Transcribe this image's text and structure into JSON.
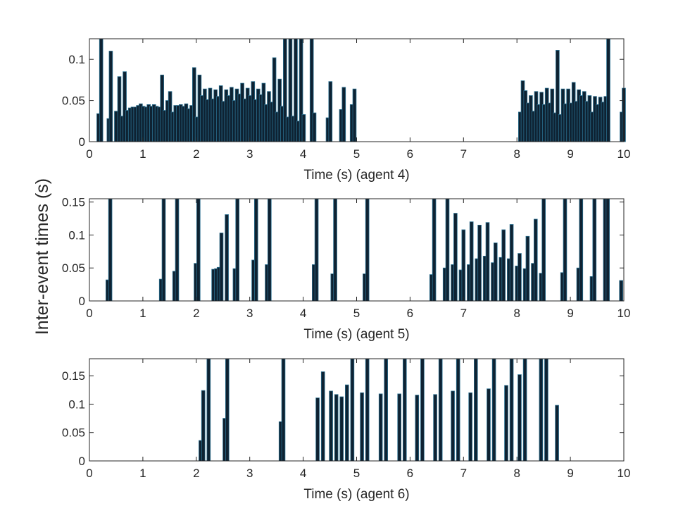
{
  "ylabel": "Inter-event times (s)",
  "colors": {
    "bar": "#0e2232",
    "bar_edge": "#2a6f8f",
    "axis": "#262626"
  },
  "chart_data": [
    {
      "type": "bar",
      "xlabel": "Time (s) (agent 4)",
      "xlim": [
        0,
        10
      ],
      "ylim": [
        0,
        0.125
      ],
      "xticks": [
        0,
        1,
        2,
        3,
        4,
        5,
        6,
        7,
        8,
        9,
        10
      ],
      "yticks": [
        0,
        0.05,
        0.1
      ],
      "ytick_labels": [
        "0",
        "0.05",
        "0.1"
      ],
      "x": [
        0.17,
        0.22,
        0.36,
        0.4,
        0.5,
        0.56,
        0.61,
        0.66,
        0.71,
        0.76,
        0.81,
        0.86,
        0.91,
        0.96,
        1.01,
        1.06,
        1.11,
        1.16,
        1.21,
        1.26,
        1.31,
        1.36,
        1.41,
        1.46,
        1.51,
        1.56,
        1.61,
        1.66,
        1.71,
        1.76,
        1.81,
        1.86,
        1.91,
        1.96,
        2.01,
        2.06,
        2.11,
        2.16,
        2.21,
        2.26,
        2.31,
        2.36,
        2.41,
        2.46,
        2.51,
        2.56,
        2.61,
        2.66,
        2.71,
        2.76,
        2.81,
        2.86,
        2.91,
        2.96,
        3.01,
        3.06,
        3.11,
        3.16,
        3.21,
        3.26,
        3.31,
        3.36,
        3.41,
        3.46,
        3.51,
        3.56,
        3.61,
        3.66,
        3.71,
        3.76,
        3.81,
        3.86,
        3.91,
        3.96,
        4.01,
        4.16,
        4.21,
        4.46,
        4.51,
        4.71,
        4.76,
        4.91,
        4.96,
        8.06,
        8.11,
        8.16,
        8.21,
        8.26,
        8.31,
        8.36,
        8.41,
        8.46,
        8.51,
        8.56,
        8.61,
        8.66,
        8.71,
        8.76,
        8.81,
        8.86,
        8.91,
        8.96,
        9.01,
        9.06,
        9.11,
        9.16,
        9.21,
        9.26,
        9.31,
        9.36,
        9.41,
        9.46,
        9.51,
        9.56,
        9.61,
        9.66,
        9.71,
        9.96,
        10.0
      ],
      "values": [
        0.034,
        0.125,
        0.028,
        0.11,
        0.037,
        0.079,
        0.031,
        0.085,
        0.038,
        0.041,
        0.042,
        0.042,
        0.044,
        0.046,
        0.043,
        0.042,
        0.045,
        0.043,
        0.045,
        0.043,
        0.042,
        0.081,
        0.038,
        0.05,
        0.061,
        0.036,
        0.044,
        0.044,
        0.045,
        0.043,
        0.046,
        0.04,
        0.044,
        0.09,
        0.03,
        0.081,
        0.056,
        0.064,
        0.051,
        0.065,
        0.052,
        0.063,
        0.055,
        0.068,
        0.049,
        0.063,
        0.056,
        0.066,
        0.05,
        0.064,
        0.058,
        0.071,
        0.052,
        0.065,
        0.056,
        0.073,
        0.051,
        0.064,
        0.057,
        0.071,
        0.045,
        0.061,
        0.048,
        0.102,
        0.036,
        0.076,
        0.043,
        0.125,
        0.03,
        0.125,
        0.031,
        0.125,
        0.025,
        0.125,
        0.033,
        0.125,
        0.035,
        0.029,
        0.073,
        0.039,
        0.066,
        0.045,
        0.064,
        0.036,
        0.074,
        0.062,
        0.047,
        0.056,
        0.037,
        0.061,
        0.045,
        0.06,
        0.045,
        0.065,
        0.047,
        0.064,
        0.035,
        0.111,
        0.033,
        0.064,
        0.046,
        0.064,
        0.047,
        0.072,
        0.049,
        0.063,
        0.056,
        0.061,
        0.049,
        0.056,
        0.036,
        0.055,
        0.045,
        0.054,
        0.048,
        0.055,
        0.125,
        0.036,
        0.065
      ]
    },
    {
      "type": "bar",
      "xlabel": "Time (s) (agent 5)",
      "xlim": [
        0,
        10
      ],
      "ylim": [
        0,
        0.155
      ],
      "xticks": [
        0,
        1,
        2,
        3,
        4,
        5,
        6,
        7,
        8,
        9,
        10
      ],
      "yticks": [
        0,
        0.05,
        0.1,
        0.15
      ],
      "ytick_labels": [
        "0",
        "0.05",
        "0.1",
        "0.15"
      ],
      "x": [
        0.34,
        0.39,
        1.34,
        1.39,
        1.59,
        1.64,
        1.99,
        2.04,
        2.32,
        2.37,
        2.42,
        2.47,
        2.57,
        2.72,
        2.77,
        3.07,
        3.12,
        3.32,
        3.37,
        4.2,
        4.25,
        4.55,
        4.6,
        5.15,
        5.2,
        6.4,
        6.45,
        6.65,
        6.7,
        6.8,
        6.85,
        6.95,
        7.0,
        7.1,
        7.15,
        7.25,
        7.3,
        7.4,
        7.45,
        7.55,
        7.6,
        7.7,
        7.75,
        7.85,
        7.9,
        8.0,
        8.05,
        8.15,
        8.2,
        8.3,
        8.35,
        8.45,
        8.5,
        8.85,
        8.9,
        9.15,
        9.2,
        9.4,
        9.45,
        9.65,
        9.7,
        9.95
      ],
      "values": [
        0.032,
        0.155,
        0.033,
        0.155,
        0.045,
        0.155,
        0.057,
        0.155,
        0.048,
        0.049,
        0.051,
        0.103,
        0.131,
        0.049,
        0.155,
        0.062,
        0.155,
        0.055,
        0.155,
        0.055,
        0.155,
        0.041,
        0.155,
        0.041,
        0.155,
        0.04,
        0.155,
        0.05,
        0.155,
        0.055,
        0.133,
        0.047,
        0.108,
        0.055,
        0.12,
        0.064,
        0.115,
        0.068,
        0.119,
        0.058,
        0.088,
        0.066,
        0.108,
        0.064,
        0.116,
        0.053,
        0.072,
        0.049,
        0.098,
        0.057,
        0.124,
        0.042,
        0.155,
        0.043,
        0.155,
        0.05,
        0.155,
        0.037,
        0.155,
        0.155,
        0.155,
        0.031
      ]
    },
    {
      "type": "bar",
      "xlabel": "Time (s) (agent 6)",
      "xlim": [
        0,
        10
      ],
      "ylim": [
        0,
        0.18
      ],
      "xticks": [
        0,
        1,
        2,
        3,
        4,
        5,
        6,
        7,
        8,
        9,
        10
      ],
      "yticks": [
        0,
        0.05,
        0.1,
        0.15
      ],
      "ytick_labels": [
        "0",
        "0.05",
        "0.1",
        "0.15"
      ],
      "x": [
        2.08,
        2.13,
        2.23,
        2.53,
        2.58,
        3.58,
        3.63,
        4.27,
        4.37,
        4.52,
        4.62,
        4.72,
        4.82,
        4.92,
        5.1,
        5.2,
        5.45,
        5.55,
        5.8,
        5.9,
        6.13,
        6.23,
        6.47,
        6.57,
        6.8,
        6.9,
        7.13,
        7.23,
        7.47,
        7.57,
        7.8,
        7.9,
        8.05,
        8.15,
        8.45,
        8.55,
        8.75
      ],
      "values": [
        0.036,
        0.124,
        0.18,
        0.075,
        0.18,
        0.069,
        0.18,
        0.111,
        0.157,
        0.123,
        0.117,
        0.113,
        0.134,
        0.18,
        0.12,
        0.18,
        0.118,
        0.18,
        0.118,
        0.18,
        0.116,
        0.18,
        0.117,
        0.18,
        0.123,
        0.18,
        0.12,
        0.18,
        0.127,
        0.18,
        0.133,
        0.18,
        0.152,
        0.18,
        0.18,
        0.18,
        0.098
      ]
    }
  ]
}
